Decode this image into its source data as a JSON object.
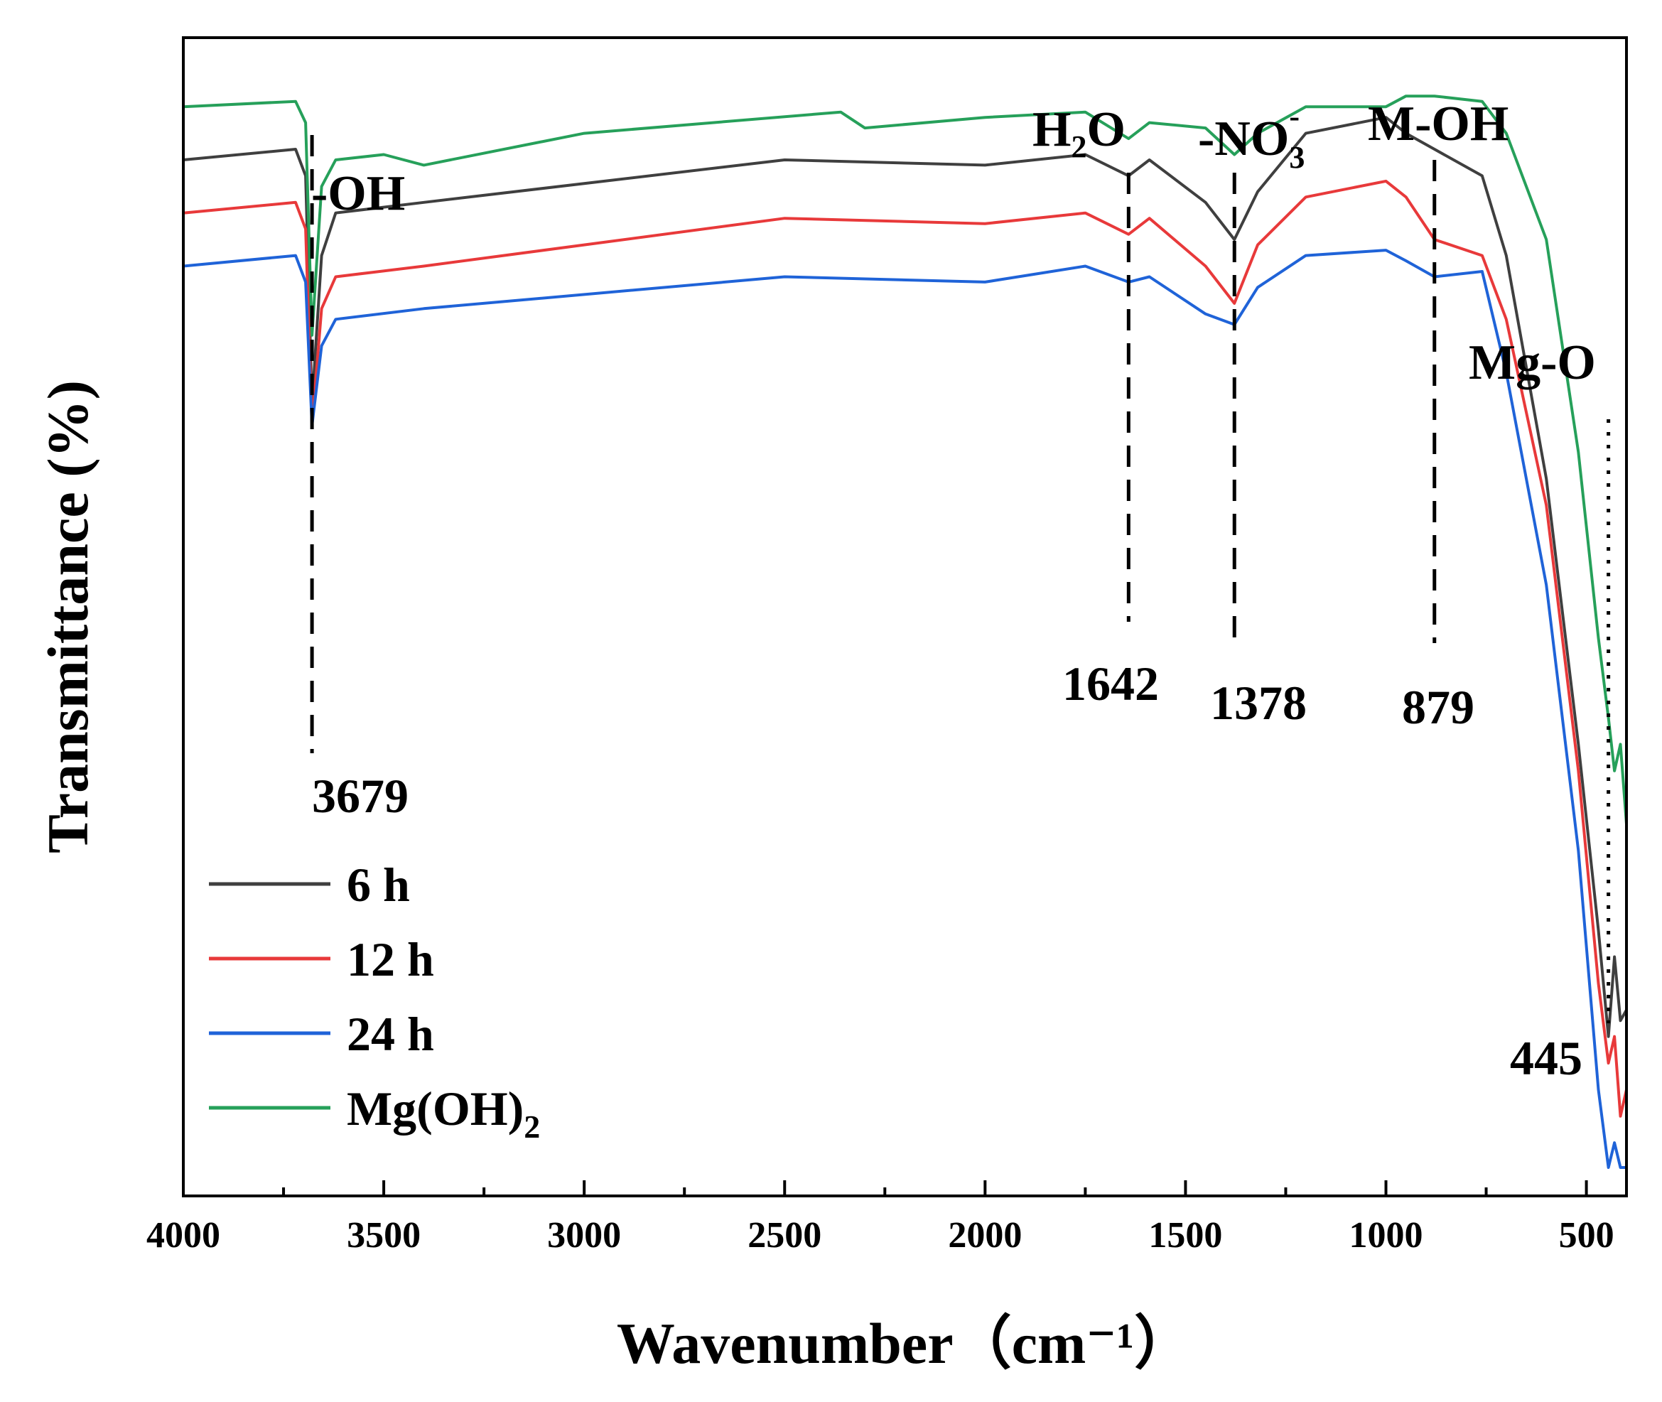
{
  "chart_data": {
    "type": "line",
    "xlabel": "Wavenumber（cm⁻¹）",
    "ylabel": "Transmittance (%)",
    "xlim": [
      4000,
      400
    ],
    "x_ticks": [
      4000,
      3500,
      3000,
      2500,
      2000,
      1500,
      1000,
      500
    ],
    "grid": false,
    "legend_position": "bottom-left",
    "series": [
      {
        "name": "6 h",
        "color": "#3f3f3f",
        "offset": 3,
        "x": [
          4000,
          3720,
          3695,
          3679,
          3655,
          3620,
          3400,
          2500,
          2000,
          1750,
          1642,
          1590,
          1450,
          1378,
          1320,
          1200,
          1000,
          950,
          879,
          760,
          700,
          600,
          520,
          470,
          445,
          430,
          415,
          400
        ],
        "values": [
          0,
          0.2,
          -0.3,
          -4.6,
          -1.8,
          -1.0,
          -0.8,
          0,
          -0.1,
          0.1,
          -0.3,
          0,
          -0.8,
          -1.5,
          -0.6,
          0.5,
          0.8,
          0.5,
          0.2,
          -0.3,
          -1.8,
          -6.0,
          -11.0,
          -14.5,
          -16.5,
          -15.0,
          -16.2,
          -16.0
        ]
      },
      {
        "name": "12 h",
        "color": "#e8393a",
        "offset": 2,
        "x": [
          4000,
          3720,
          3695,
          3679,
          3655,
          3620,
          3400,
          2500,
          2000,
          1750,
          1642,
          1590,
          1450,
          1378,
          1320,
          1200,
          1000,
          950,
          879,
          760,
          700,
          600,
          520,
          470,
          445,
          430,
          415,
          400
        ],
        "values": [
          0,
          0.2,
          -0.3,
          -4.0,
          -1.8,
          -1.2,
          -1.0,
          -0.1,
          -0.2,
          0,
          -0.4,
          -0.1,
          -1.0,
          -1.7,
          -0.6,
          0.3,
          0.6,
          0.3,
          -0.5,
          -0.8,
          -2.0,
          -5.5,
          -10.5,
          -14.5,
          -16.0,
          -15.5,
          -17.0,
          -16.5
        ]
      },
      {
        "name": "24 h",
        "color": "#1f63d8",
        "offset": 1,
        "x": [
          4000,
          3720,
          3695,
          3679,
          3655,
          3620,
          3400,
          2500,
          2000,
          1750,
          1642,
          1590,
          1450,
          1378,
          1320,
          1200,
          1000,
          950,
          879,
          760,
          700,
          600,
          520,
          470,
          445,
          430,
          415,
          400
        ],
        "values": [
          0,
          0.2,
          -0.3,
          -3.0,
          -1.5,
          -1.0,
          -0.8,
          -0.2,
          -0.3,
          0,
          -0.3,
          -0.2,
          -0.9,
          -1.1,
          -0.4,
          0.2,
          0.3,
          0.1,
          -0.2,
          -0.1,
          -2.0,
          -6.0,
          -11.0,
          -15.5,
          -17.5,
          -16.5,
          -18.0,
          -18.5
        ]
      },
      {
        "name": "Mg(OH)2",
        "color": "#26a05a",
        "offset": 4,
        "x": [
          4000,
          3720,
          3695,
          3679,
          3655,
          3620,
          3500,
          3400,
          3000,
          2360,
          2300,
          2000,
          1750,
          1642,
          1590,
          1450,
          1378,
          1320,
          1200,
          1000,
          950,
          879,
          760,
          700,
          600,
          520,
          470,
          445,
          430,
          415,
          400
        ],
        "values": [
          0,
          0.1,
          -0.3,
          -4.3,
          -1.5,
          -1.0,
          -0.9,
          -1.1,
          -0.5,
          -0.1,
          -0.4,
          -0.2,
          -0.1,
          -0.6,
          -0.3,
          -0.4,
          -0.9,
          -0.5,
          0,
          0,
          0.2,
          0.2,
          0.1,
          -0.5,
          -2.5,
          -6.5,
          -10.0,
          -11.5,
          -12.5,
          -12.0,
          -13.5
        ]
      }
    ],
    "annotations": {
      "group_labels": [
        "-OH",
        "H2O",
        "-NO3-",
        "M-OH",
        "Mg-O"
      ],
      "peaks": [
        {
          "x": 3679,
          "label": "3679",
          "group": "-OH"
        },
        {
          "x": 1642,
          "label": "1642",
          "group": "H2O"
        },
        {
          "x": 1378,
          "label": "1378",
          "group": "-NO3-"
        },
        {
          "x": 879,
          "label": "879",
          "group": "M-OH"
        },
        {
          "x": 445,
          "label": "445",
          "group": "Mg-O"
        }
      ]
    },
    "text": {
      "oh": "-OH",
      "h2o_main": "H",
      "h2o_sub": "2",
      "h2o_tail": "O",
      "no3_main": "-NO",
      "no3_sub": "3",
      "no3_sup": "-",
      "moh": "M-OH",
      "mgo": "Mg-O",
      "mgoh2_main": "Mg(OH)",
      "mgoh2_sub": "2"
    }
  }
}
